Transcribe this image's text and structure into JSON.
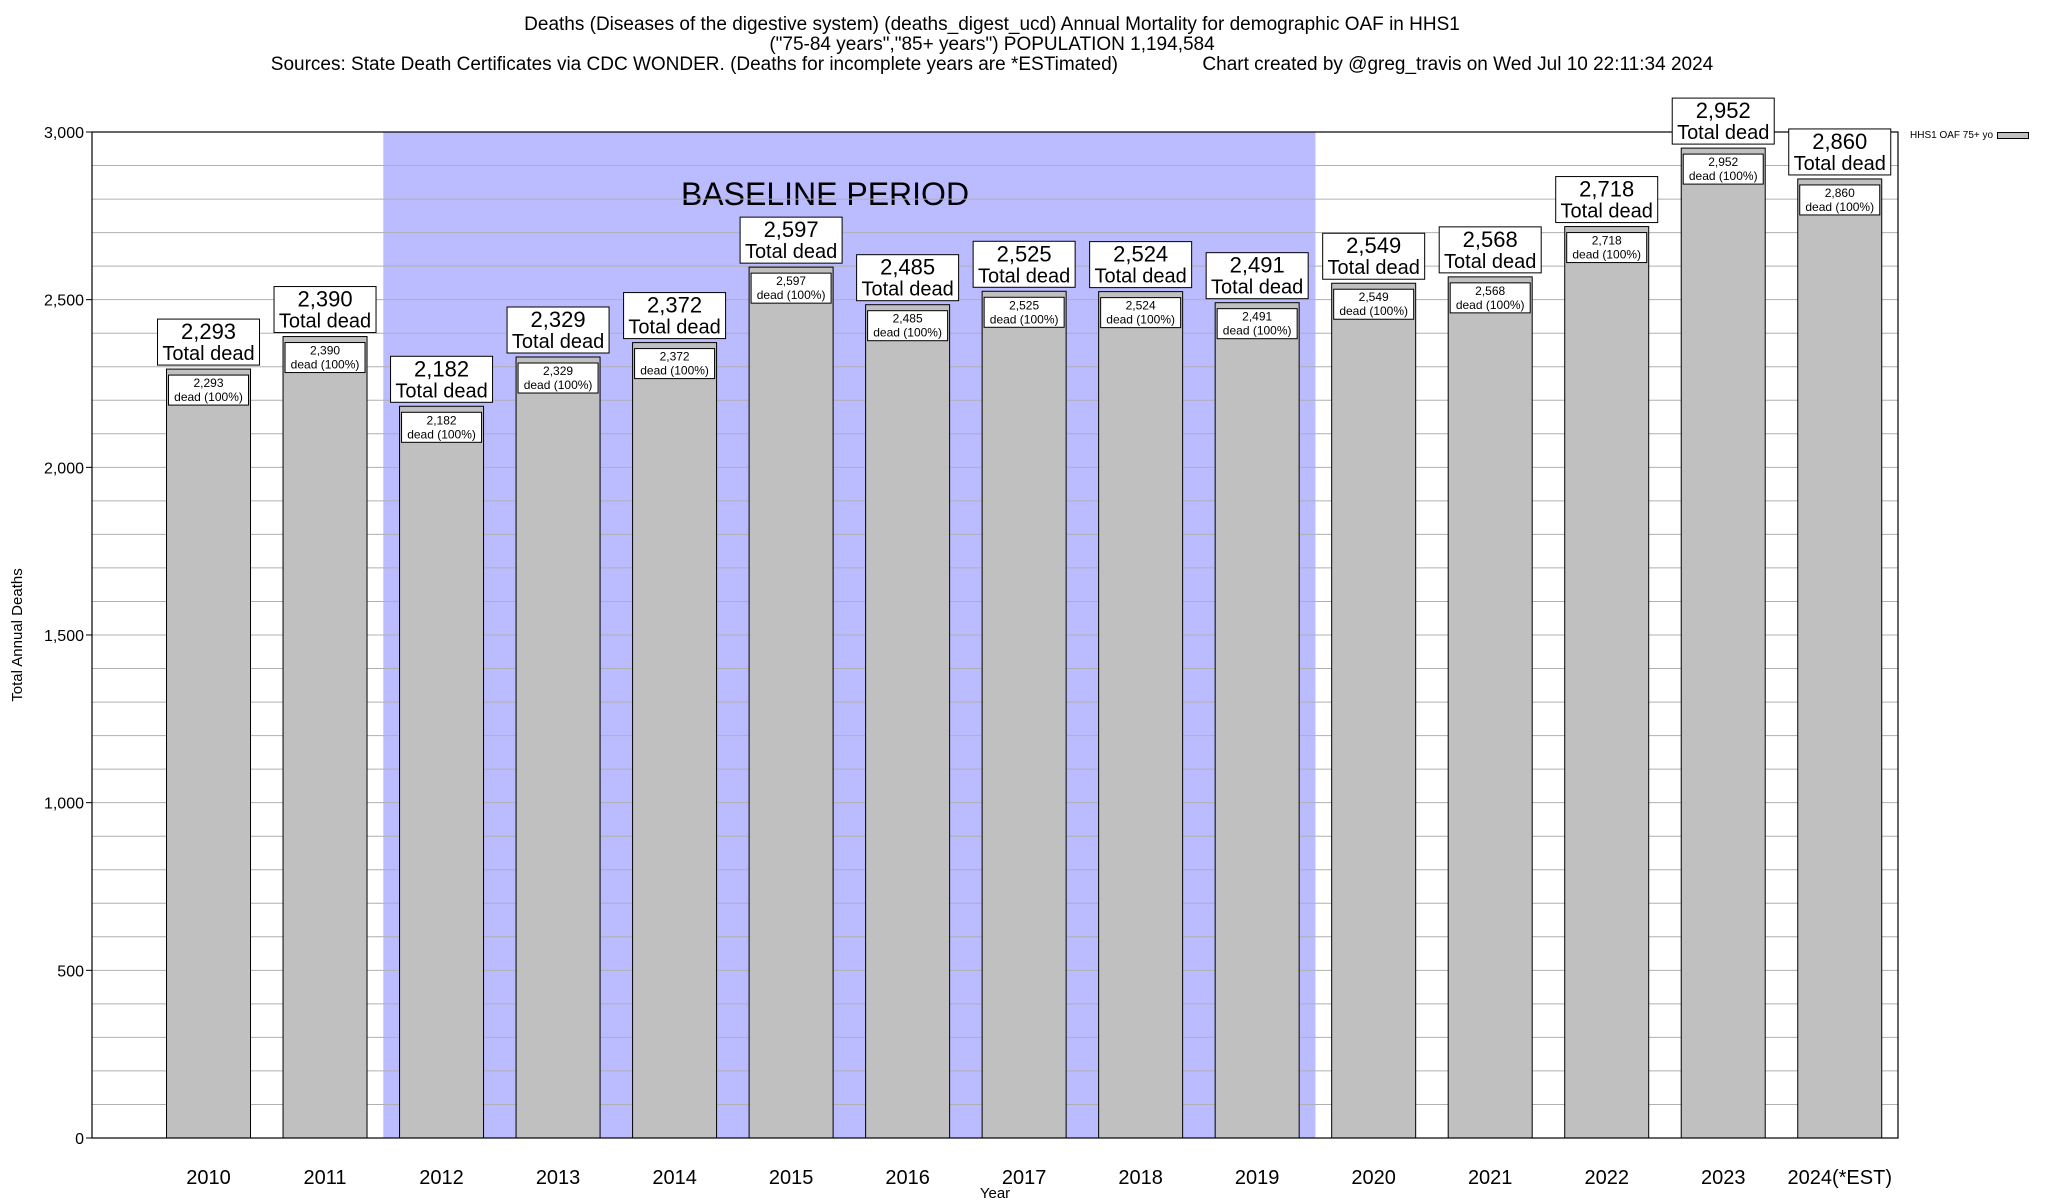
{
  "title": {
    "line1": "Deaths (Diseases of the digestive system) (deaths_digest_ucd) Annual Mortality for demographic OAF in HHS1",
    "line2": "(\"75-84 years\",\"85+ years\") POPULATION 1,194,584",
    "line3": "Sources: State Death Certificates via CDC WONDER. (Deaths for incomplete years are *ESTimated)                Chart created by @greg_travis on Wed Jul 10 22:11:34 2024"
  },
  "chart_data": {
    "type": "bar",
    "categories": [
      "2010",
      "2011",
      "2012",
      "2013",
      "2014",
      "2015",
      "2016",
      "2017",
      "2018",
      "2019",
      "2020",
      "2021",
      "2022",
      "2023",
      "2024(*EST)"
    ],
    "series": [
      {
        "name": "HHS1 OAF 75+ yo",
        "values": [
          2293,
          2390,
          2182,
          2329,
          2372,
          2597,
          2485,
          2525,
          2524,
          2491,
          2549,
          2568,
          2718,
          2952,
          2860
        ]
      }
    ],
    "value_labels": [
      "2,293",
      "2,390",
      "2,182",
      "2,329",
      "2,372",
      "2,597",
      "2,485",
      "2,525",
      "2,524",
      "2,491",
      "2,549",
      "2,568",
      "2,718",
      "2,952",
      "2,860"
    ],
    "top_label_suffix": "Total dead",
    "inner_label_suffix": "dead (100%)",
    "xlabel": "Year",
    "ylabel": "Total Annual Deaths",
    "ylim": [
      0,
      3000
    ],
    "yticks": [
      0,
      500,
      1000,
      1500,
      2000,
      2500,
      3000
    ],
    "ytick_labels": [
      "0",
      "500",
      "1,000",
      "1,500",
      "2,000",
      "2,500",
      "3,000"
    ],
    "minor_grid_step": 100,
    "grid": true,
    "legend_placement": "top-right, outside plot",
    "baseline_period": {
      "label": "BASELINE PERIOD",
      "from": "2012",
      "to": "2019",
      "color": "#bbbbff"
    },
    "bar_color": "#c0c0c0"
  }
}
